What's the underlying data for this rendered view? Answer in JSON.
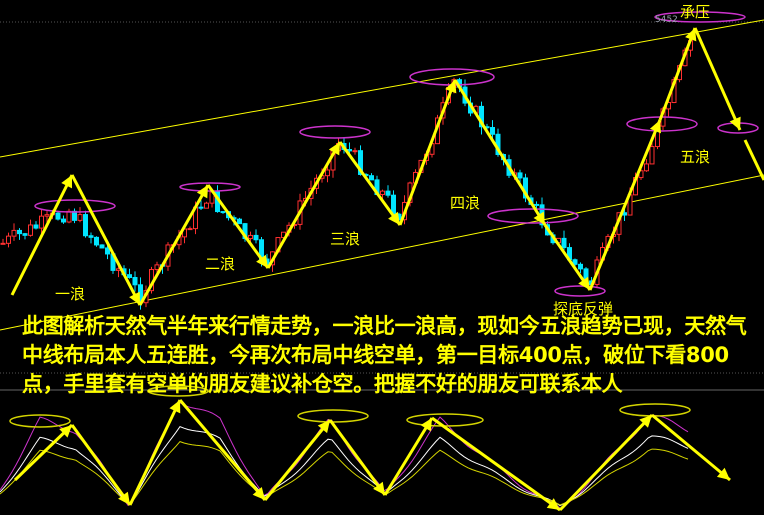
{
  "chart_data": {
    "type": "candlestick",
    "title": "",
    "indicator_panel": "oscillator",
    "colors": {
      "up": "#ff3030",
      "down": "#00e5ff",
      "arrows": "#ffff00",
      "channel": "#ffff00",
      "ellipse": "#cc33cc",
      "osc1": "#cc33cc",
      "osc2": "#ffffff",
      "osc3": "#d4d400"
    },
    "high_price_label": "5452",
    "wave_labels": [
      "一浪",
      "二浪",
      "三浪",
      "四浪",
      "五浪"
    ],
    "annotations": {
      "bottom": "探底反弹",
      "resistance": "承压"
    },
    "grid": false
  },
  "note": "此图解析天然气半年来行情走势，一浪比一浪高，现如今五浪趋势已现，天然气中线布局本人五连胜，今再次布局中线空单，第一目标400点，破位下看800点，手里套有空单的朋友建议补仓空。把握不好的朋友可联系本人"
}
